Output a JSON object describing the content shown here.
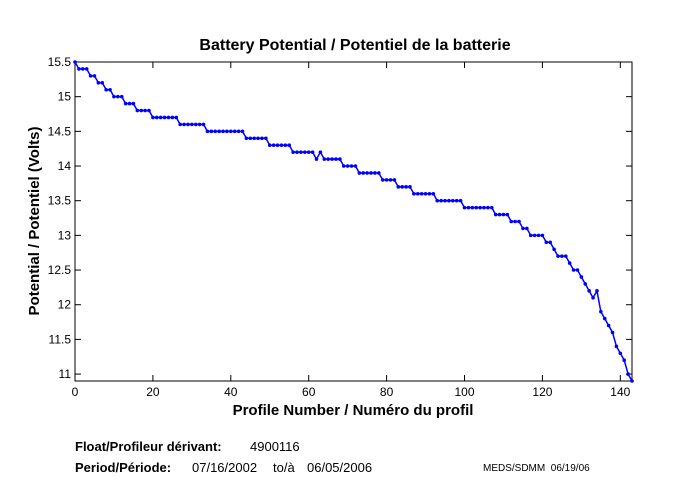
{
  "chart_data": {
    "type": "line",
    "title": "Battery Potential / Potentiel de la batterie",
    "xlabel": "Profile Number / Numéro du profil",
    "ylabel": "Potential / Potentiel (Volts)",
    "xlim": [
      0,
      143
    ],
    "ylim": [
      10.9,
      15.5
    ],
    "xticks": [
      0,
      20,
      40,
      60,
      80,
      100,
      120,
      140
    ],
    "yticks": [
      11,
      11.5,
      12,
      12.5,
      13,
      13.5,
      14,
      14.5,
      15,
      15.5
    ],
    "ytick_labels": [
      "11",
      "11.5",
      "12",
      "12.5",
      "13",
      "13.5",
      "14",
      "14.5",
      "15",
      "15.5"
    ],
    "grid": false,
    "color": "#0000ff",
    "series": [
      {
        "name": "Battery Potential",
        "x_start": 0,
        "values": [
          15.5,
          15.4,
          15.4,
          15.4,
          15.3,
          15.3,
          15.2,
          15.2,
          15.1,
          15.1,
          15.0,
          15.0,
          15.0,
          14.9,
          14.9,
          14.9,
          14.8,
          14.8,
          14.8,
          14.8,
          14.7,
          14.7,
          14.7,
          14.7,
          14.7,
          14.7,
          14.7,
          14.6,
          14.6,
          14.6,
          14.6,
          14.6,
          14.6,
          14.6,
          14.5,
          14.5,
          14.5,
          14.5,
          14.5,
          14.5,
          14.5,
          14.5,
          14.5,
          14.5,
          14.4,
          14.4,
          14.4,
          14.4,
          14.4,
          14.4,
          14.3,
          14.3,
          14.3,
          14.3,
          14.3,
          14.3,
          14.2,
          14.2,
          14.2,
          14.2,
          14.2,
          14.2,
          14.1,
          14.2,
          14.1,
          14.1,
          14.1,
          14.1,
          14.1,
          14.0,
          14.0,
          14.0,
          14.0,
          13.9,
          13.9,
          13.9,
          13.9,
          13.9,
          13.9,
          13.8,
          13.8,
          13.8,
          13.8,
          13.7,
          13.7,
          13.7,
          13.7,
          13.6,
          13.6,
          13.6,
          13.6,
          13.6,
          13.6,
          13.5,
          13.5,
          13.5,
          13.5,
          13.5,
          13.5,
          13.5,
          13.4,
          13.4,
          13.4,
          13.4,
          13.4,
          13.4,
          13.4,
          13.4,
          13.3,
          13.3,
          13.3,
          13.3,
          13.2,
          13.2,
          13.2,
          13.1,
          13.1,
          13.0,
          13.0,
          13.0,
          13.0,
          12.9,
          12.9,
          12.8,
          12.7,
          12.7,
          12.7,
          12.6,
          12.5,
          12.5,
          12.4,
          12.3,
          12.2,
          12.1,
          12.2,
          11.9,
          11.8,
          11.7,
          11.6,
          11.4,
          11.3,
          11.2,
          11.0,
          10.9
        ]
      }
    ]
  },
  "info": {
    "float_label": "Float/Profileur dérivant:",
    "float_id": "4900116",
    "period_label": "Period/Période:",
    "period_start": "07/16/2002",
    "period_sep": "to/à",
    "period_end": "06/05/2006",
    "credit": "MEDS/SDMM  06/19/06"
  }
}
